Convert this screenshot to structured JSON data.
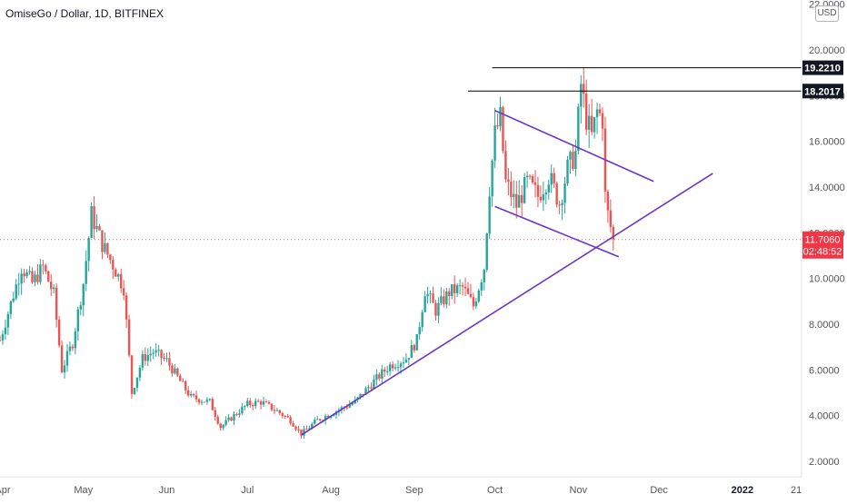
{
  "header": {
    "title": "OmiseGo / Dollar, 1D, BITFINEX",
    "currency_button": "USD"
  },
  "chart_data": {
    "type": "candlestick",
    "title": "OmiseGo / Dollar, 1D, BITFINEX",
    "currency": "USD",
    "y_ticks": [
      "2.0000",
      "4.0000",
      "6.0000",
      "8.0000",
      "10.0000",
      "12.0000",
      "14.0000",
      "16.0000",
      "18.0000",
      "20.0000",
      "22.0000"
    ],
    "ylim": [
      2.0,
      22.0
    ],
    "x_ticks": [
      "Apr",
      "May",
      "Jun",
      "Jul",
      "Aug",
      "Sep",
      "Oct",
      "Nov",
      "Dec",
      "2022",
      "21"
    ],
    "x_tick_dates": [
      "2021-04-01",
      "2021-05-01",
      "2021-06-01",
      "2021-07-01",
      "2021-08-01",
      "2021-09-01",
      "2021-10-01",
      "2021-11-01",
      "2021-12-01",
      "2022-01-01",
      "2022-01-21"
    ],
    "date_range": [
      "2021-03-31",
      "2022-01-23"
    ],
    "grid": false,
    "price_path": [
      {
        "date": "2021-03-31",
        "price": 7.3
      },
      {
        "date": "2021-04-08",
        "price": 10.5
      },
      {
        "date": "2021-04-12",
        "price": 9.8
      },
      {
        "date": "2021-04-16",
        "price": 10.5
      },
      {
        "date": "2021-04-20",
        "price": 9.3
      },
      {
        "date": "2021-04-23",
        "price": 6.0
      },
      {
        "date": "2021-04-27",
        "price": 7.2
      },
      {
        "date": "2021-05-01",
        "price": 9.8
      },
      {
        "date": "2021-05-04",
        "price": 12.8
      },
      {
        "date": "2021-05-08",
        "price": 11.5
      },
      {
        "date": "2021-05-12",
        "price": 10.6
      },
      {
        "date": "2021-05-16",
        "price": 9.6
      },
      {
        "date": "2021-05-19",
        "price": 5.0
      },
      {
        "date": "2021-05-23",
        "price": 6.5
      },
      {
        "date": "2021-05-27",
        "price": 6.8
      },
      {
        "date": "2021-06-01",
        "price": 6.4
      },
      {
        "date": "2021-06-06",
        "price": 5.5
      },
      {
        "date": "2021-06-10",
        "price": 4.8
      },
      {
        "date": "2021-06-17",
        "price": 4.6
      },
      {
        "date": "2021-06-21",
        "price": 3.5
      },
      {
        "date": "2021-06-25",
        "price": 3.9
      },
      {
        "date": "2021-07-01",
        "price": 4.5
      },
      {
        "date": "2021-07-06",
        "price": 4.6
      },
      {
        "date": "2021-07-12",
        "price": 4.2
      },
      {
        "date": "2021-07-17",
        "price": 3.8
      },
      {
        "date": "2021-07-21",
        "price": 3.2
      },
      {
        "date": "2021-07-27",
        "price": 3.8
      },
      {
        "date": "2021-08-03",
        "price": 4.2
      },
      {
        "date": "2021-08-10",
        "price": 4.6
      },
      {
        "date": "2021-08-17",
        "price": 5.5
      },
      {
        "date": "2021-08-23",
        "price": 6.2
      },
      {
        "date": "2021-08-29",
        "price": 6.5
      },
      {
        "date": "2021-09-02",
        "price": 7.3
      },
      {
        "date": "2021-09-05",
        "price": 9.5
      },
      {
        "date": "2021-09-09",
        "price": 8.6
      },
      {
        "date": "2021-09-14",
        "price": 9.4
      },
      {
        "date": "2021-09-19",
        "price": 9.6
      },
      {
        "date": "2021-09-23",
        "price": 8.8
      },
      {
        "date": "2021-09-27",
        "price": 10.5
      },
      {
        "date": "2021-09-29",
        "price": 14.0
      },
      {
        "date": "2021-10-01",
        "price": 16.3
      },
      {
        "date": "2021-10-03",
        "price": 17.0
      },
      {
        "date": "2021-10-05",
        "price": 14.2
      },
      {
        "date": "2021-10-09",
        "price": 13.2
      },
      {
        "date": "2021-10-13",
        "price": 14.2
      },
      {
        "date": "2021-10-17",
        "price": 13.6
      },
      {
        "date": "2021-10-21",
        "price": 14.5
      },
      {
        "date": "2021-10-25",
        "price": 13.3
      },
      {
        "date": "2021-10-28",
        "price": 14.8
      },
      {
        "date": "2021-10-31",
        "price": 15.5
      },
      {
        "date": "2021-11-02",
        "price": 18.5
      },
      {
        "date": "2021-11-04",
        "price": 17.0
      },
      {
        "date": "2021-11-06",
        "price": 16.2
      },
      {
        "date": "2021-11-08",
        "price": 17.3
      },
      {
        "date": "2021-11-10",
        "price": 17.0
      },
      {
        "date": "2021-11-11",
        "price": 13.6
      },
      {
        "date": "2021-11-12",
        "price": 12.8
      },
      {
        "date": "2021-11-14",
        "price": 11.706
      }
    ],
    "horizontal_levels": [
      {
        "price": 19.221,
        "label": "19.2210",
        "from_date": "2021-09-30",
        "color": "#000000"
      },
      {
        "price": 18.2017,
        "label": "18.2017",
        "from_date": "2021-09-21",
        "color": "#000000"
      }
    ],
    "trendlines": [
      {
        "name": "support",
        "points": [
          {
            "date": "2021-07-21",
            "price": 3.15
          },
          {
            "date": "2021-12-21",
            "price": 14.6
          }
        ],
        "color": "#6a35c9"
      },
      {
        "name": "channel-top",
        "points": [
          {
            "date": "2021-10-01",
            "price": 17.35
          },
          {
            "date": "2021-11-29",
            "price": 14.25
          }
        ],
        "color": "#6a35c9"
      },
      {
        "name": "channel-bottom",
        "points": [
          {
            "date": "2021-10-01",
            "price": 13.15
          },
          {
            "date": "2021-11-16",
            "price": 10.95
          }
        ],
        "color": "#6a35c9"
      }
    ],
    "last_price": {
      "value": 11.706,
      "label": "11.7060",
      "countdown": "02:48:52",
      "color": "#f23645"
    },
    "colors": {
      "up": "#26a69a",
      "down": "#ef5350",
      "trendline": "#6a35c9",
      "axis_text": "#555555"
    }
  }
}
